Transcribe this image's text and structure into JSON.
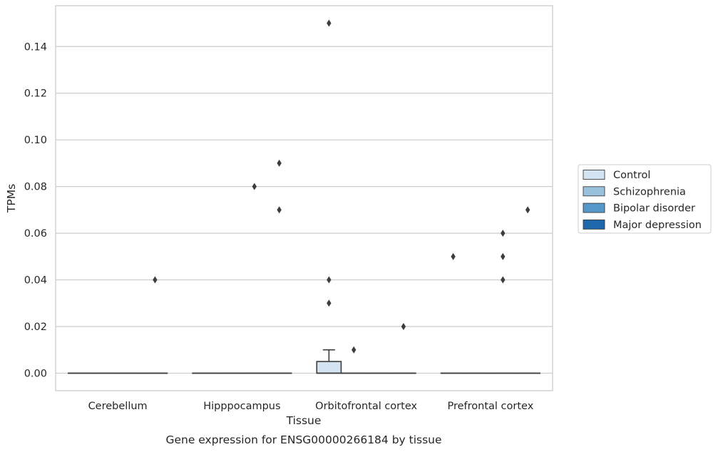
{
  "chart_data": {
    "type": "box",
    "title": "Gene expression for ENSG00000266184 by tissue",
    "xlabel": "Tissue",
    "ylabel": "TPMs",
    "ylim": [
      -0.0075,
      0.1575
    ],
    "yticks": [
      0.0,
      0.02,
      0.04,
      0.06,
      0.08,
      0.1,
      0.12,
      0.14
    ],
    "ytick_labels": [
      "0.00",
      "0.02",
      "0.04",
      "0.06",
      "0.08",
      "0.10",
      "0.12",
      "0.14"
    ],
    "grid": "horizontal",
    "legend_position": "right",
    "categories": [
      "Cerebellum",
      "Hipppocampus",
      "Orbitofrontal cortex",
      "Prefrontal cortex"
    ],
    "series": [
      {
        "name": "Control",
        "color": "#d4e3f2"
      },
      {
        "name": "Schizophrenia",
        "color": "#9ac2dc"
      },
      {
        "name": "Bipolar disorder",
        "color": "#5597c8"
      },
      {
        "name": "Major depression",
        "color": "#1f67ab"
      }
    ],
    "boxes": [
      {
        "category": "Cerebellum",
        "series": "Control",
        "q1": 0,
        "median": 0,
        "q3": 0,
        "whisker_low": 0,
        "whisker_high": 0,
        "outliers": []
      },
      {
        "category": "Cerebellum",
        "series": "Schizophrenia",
        "q1": 0,
        "median": 0,
        "q3": 0,
        "whisker_low": 0,
        "whisker_high": 0,
        "outliers": []
      },
      {
        "category": "Cerebellum",
        "series": "Bipolar disorder",
        "q1": 0,
        "median": 0,
        "q3": 0,
        "whisker_low": 0,
        "whisker_high": 0,
        "outliers": []
      },
      {
        "category": "Cerebellum",
        "series": "Major depression",
        "q1": 0,
        "median": 0,
        "q3": 0,
        "whisker_low": 0,
        "whisker_high": 0,
        "outliers": [
          0.04
        ]
      },
      {
        "category": "Hipppocampus",
        "series": "Control",
        "q1": 0,
        "median": 0,
        "q3": 0,
        "whisker_low": 0,
        "whisker_high": 0,
        "outliers": []
      },
      {
        "category": "Hipppocampus",
        "series": "Schizophrenia",
        "q1": 0,
        "median": 0,
        "q3": 0,
        "whisker_low": 0,
        "whisker_high": 0,
        "outliers": []
      },
      {
        "category": "Hipppocampus",
        "series": "Bipolar disorder",
        "q1": 0,
        "median": 0,
        "q3": 0,
        "whisker_low": 0,
        "whisker_high": 0,
        "outliers": [
          0.08
        ]
      },
      {
        "category": "Hipppocampus",
        "series": "Major depression",
        "q1": 0,
        "median": 0,
        "q3": 0,
        "whisker_low": 0,
        "whisker_high": 0,
        "outliers": [
          0.07,
          0.09
        ]
      },
      {
        "category": "Orbitofrontal cortex",
        "series": "Control",
        "q1": 0,
        "median": 0,
        "q3": 0.005,
        "whisker_low": 0,
        "whisker_high": 0.01,
        "outliers": [
          0.03,
          0.04,
          0.15
        ]
      },
      {
        "category": "Orbitofrontal cortex",
        "series": "Schizophrenia",
        "q1": 0,
        "median": 0,
        "q3": 0,
        "whisker_low": 0,
        "whisker_high": 0,
        "outliers": [
          0.01
        ]
      },
      {
        "category": "Orbitofrontal cortex",
        "series": "Bipolar disorder",
        "q1": 0,
        "median": 0,
        "q3": 0,
        "whisker_low": 0,
        "whisker_high": 0,
        "outliers": []
      },
      {
        "category": "Orbitofrontal cortex",
        "series": "Major depression",
        "q1": 0,
        "median": 0,
        "q3": 0,
        "whisker_low": 0,
        "whisker_high": 0,
        "outliers": [
          0.02
        ]
      },
      {
        "category": "Prefrontal cortex",
        "series": "Control",
        "q1": 0,
        "median": 0,
        "q3": 0,
        "whisker_low": 0,
        "whisker_high": 0,
        "outliers": [
          0.05
        ]
      },
      {
        "category": "Prefrontal cortex",
        "series": "Schizophrenia",
        "q1": 0,
        "median": 0,
        "q3": 0,
        "whisker_low": 0,
        "whisker_high": 0,
        "outliers": []
      },
      {
        "category": "Prefrontal cortex",
        "series": "Bipolar disorder",
        "q1": 0,
        "median": 0,
        "q3": 0,
        "whisker_low": 0,
        "whisker_high": 0,
        "outliers": [
          0.04,
          0.05,
          0.06
        ]
      },
      {
        "category": "Prefrontal cortex",
        "series": "Major depression",
        "q1": 0,
        "median": 0,
        "q3": 0,
        "whisker_low": 0,
        "whisker_high": 0,
        "outliers": [
          0.07
        ]
      }
    ]
  }
}
